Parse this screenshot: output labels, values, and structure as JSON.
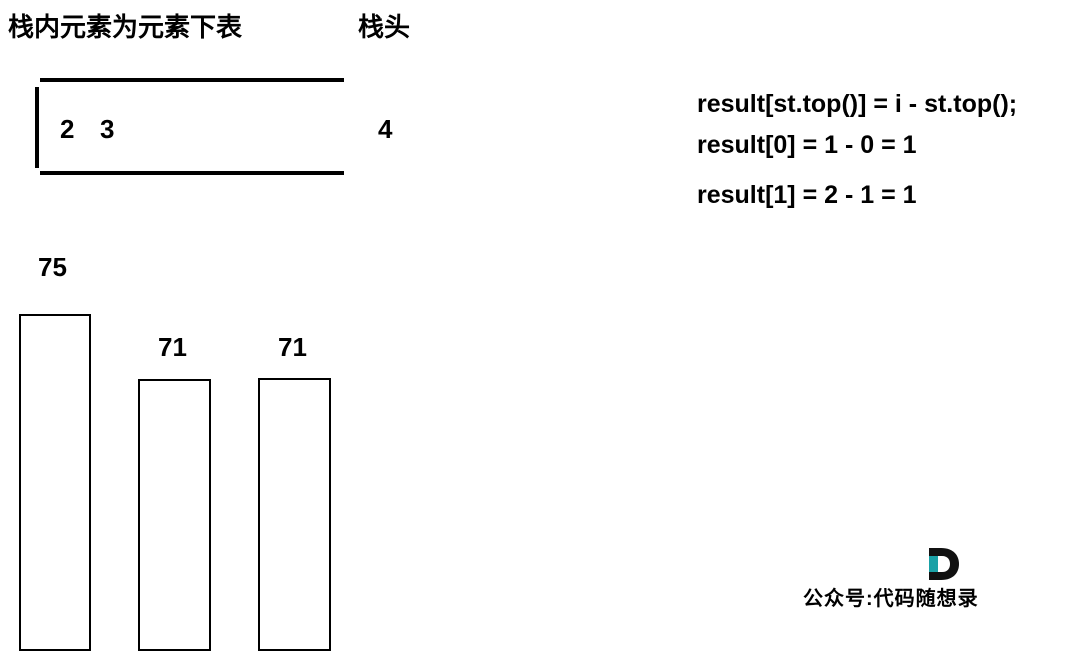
{
  "stack_section": {
    "label": "栈内元素为元素下表",
    "items": [
      "2",
      "3"
    ]
  },
  "stack_head": {
    "label": "栈头",
    "value": "4"
  },
  "formulas": [
    "result[st.top()] = i - st.top();",
    "result[0] = 1 - 0 = 1",
    "result[1] = 2 - 1 = 1"
  ],
  "temperature_bars": [
    {
      "label": "75",
      "value": 75
    },
    {
      "label": "71",
      "value": 71
    },
    {
      "label": "71",
      "value": 71
    }
  ],
  "watermark": {
    "text": "公众号:代码随想录",
    "logo_icon": "d-logo-icon",
    "logo_colors": [
      "#1aa1a6",
      "#111111"
    ]
  }
}
